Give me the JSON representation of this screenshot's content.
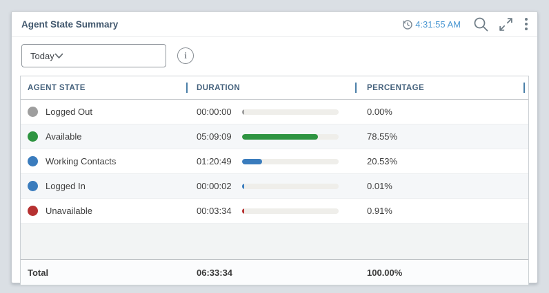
{
  "widget": {
    "title": "Agent State Summary",
    "refresh_time": "4:31:55 AM",
    "filter": {
      "selected": "Today"
    },
    "accent": {
      "time_color": "#4a97d2",
      "icon_color": "#6f7d87"
    }
  },
  "table": {
    "columns": [
      "AGENT STATE",
      "DURATION",
      "PERCENTAGE"
    ],
    "rows": [
      {
        "state": "Logged Out",
        "color": "#9e9e9e",
        "duration": "00:00:00",
        "percent": "0.00%",
        "percent_value": 0.0
      },
      {
        "state": "Available",
        "color": "#2e9441",
        "duration": "05:09:09",
        "percent": "78.55%",
        "percent_value": 78.55
      },
      {
        "state": "Working Contacts",
        "color": "#3a7cbd",
        "duration": "01:20:49",
        "percent": "20.53%",
        "percent_value": 20.53
      },
      {
        "state": "Logged In",
        "color": "#3a7cbd",
        "duration": "00:00:02",
        "percent": "0.01%",
        "percent_value": 0.01
      },
      {
        "state": "Unavailable",
        "color": "#b63131",
        "duration": "00:03:34",
        "percent": "0.91%",
        "percent_value": 0.91
      }
    ],
    "total": {
      "label": "Total",
      "duration": "06:33:34",
      "percent": "100.00%"
    }
  }
}
